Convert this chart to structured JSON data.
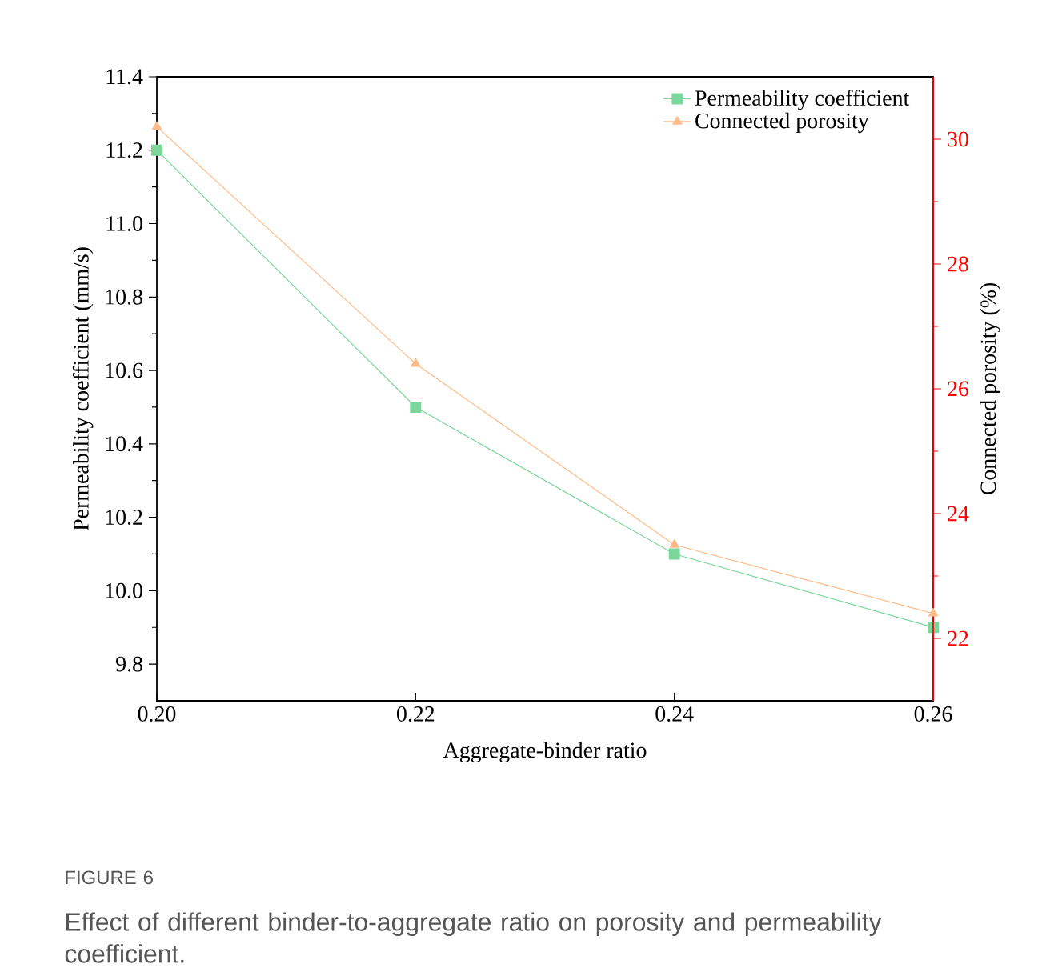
{
  "chart_data": {
    "type": "line",
    "xlabel": "Aggregate-binder ratio",
    "ylabel": "Permeability coefficient (mm/s)",
    "y2label": "Connected porosity (%)",
    "x": [
      0.2,
      0.22,
      0.24,
      0.26
    ],
    "xlim": [
      0.2,
      0.26
    ],
    "xticks": [
      {
        "value": 0.2,
        "label": "0.20"
      },
      0.22,
      0.24,
      0.26
    ],
    "ylim": [
      9.7,
      11.4
    ],
    "yticks": [
      9.8,
      {
        "value": 10.0,
        "label": "10.0"
      },
      10.2,
      10.4,
      10.6,
      10.8,
      {
        "value": 11.0,
        "label": "11.0"
      },
      11.2,
      11.4
    ],
    "y2lim": [
      21,
      31
    ],
    "y2ticks": [
      22,
      24,
      26,
      28,
      30
    ],
    "series": [
      {
        "name": "Permeability coefficient",
        "color": "#7ad69a",
        "marker": "square",
        "values": [
          11.2,
          10.5,
          10.1,
          9.9
        ]
      },
      {
        "name": "Connected porosity",
        "color": "#ffbb88",
        "marker": "triangle",
        "axis": "y2",
        "values": [
          30.2,
          26.4,
          23.5,
          22.4
        ]
      }
    ],
    "legend": "top right",
    "annotations": [
      "FIGURE 6",
      "Effect of different binder-to-aggregate ratio on porosity and permeability coefficient."
    ]
  }
}
